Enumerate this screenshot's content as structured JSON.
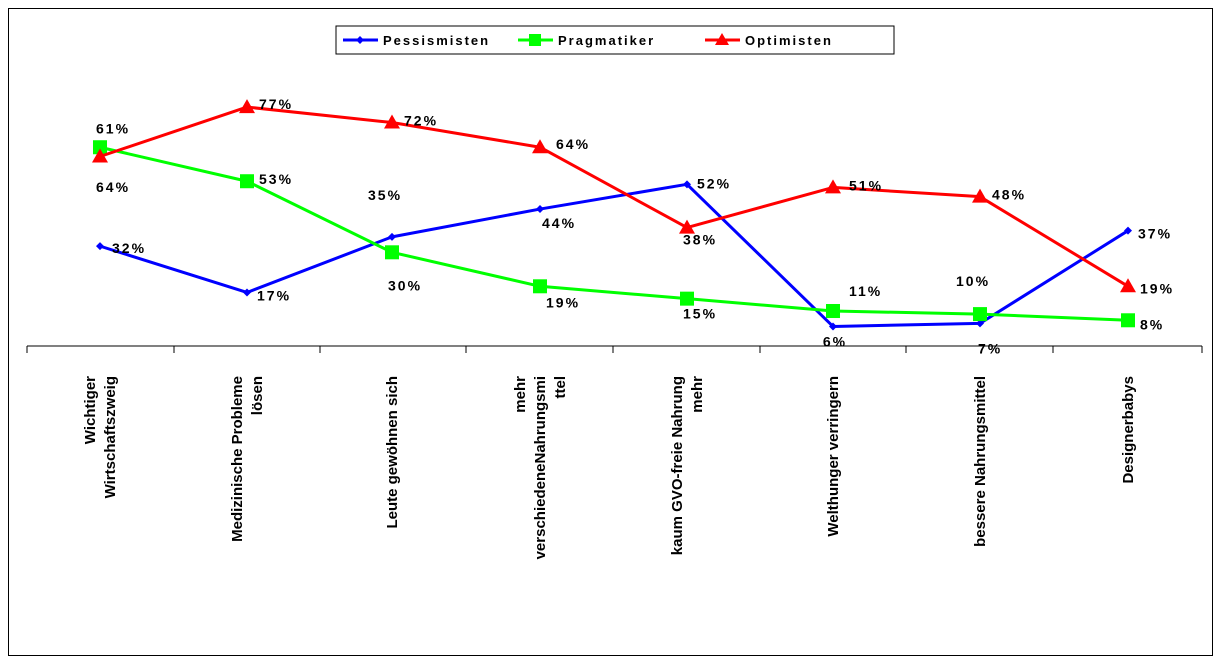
{
  "chart_data": {
    "type": "line",
    "categories": [
      [
        "Wichtiger",
        "Wirtschaftszweig"
      ],
      [
        "Medizinische Probleme",
        "lösen"
      ],
      [
        "Leute gewöhnen sich"
      ],
      [
        "mehr",
        "verschiedeneNahrungsmi",
        "ttel"
      ],
      [
        "kaum GVO-freie Nahrung",
        "mehr"
      ],
      [
        "Welthunger verringern"
      ],
      [
        "bessere Nahrungsmittel"
      ],
      [
        "Designerbabys"
      ]
    ],
    "series": [
      {
        "name": "Pessismisten",
        "color": "#0000ff",
        "marker": "diamond",
        "values": [
          32,
          17,
          35,
          44,
          52,
          6,
          7,
          37
        ],
        "labels": [
          "32%",
          "17%",
          "35%",
          "44%",
          "52%",
          "6%",
          "7%",
          "37%"
        ]
      },
      {
        "name": "Pragmatiker",
        "color": "#00ff00",
        "marker": "square",
        "values": [
          64,
          53,
          30,
          19,
          15,
          11,
          10,
          8
        ],
        "labels": [
          "64%",
          "53%",
          "30%",
          "19%",
          "15%",
          "11%",
          "10%",
          "8%"
        ]
      },
      {
        "name": "Optimisten",
        "color": "#ff0000",
        "marker": "triangle",
        "values": [
          61,
          77,
          72,
          64,
          38,
          51,
          48,
          19
        ],
        "labels": [
          "61%",
          "77%",
          "72%",
          "64%",
          "38%",
          "51%",
          "48%",
          "19%"
        ]
      }
    ],
    "legend_position": "top",
    "grid": false
  }
}
